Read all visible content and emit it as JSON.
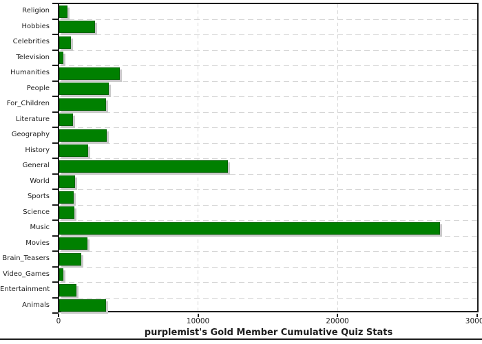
{
  "chart_data": {
    "type": "bar",
    "orientation": "horizontal",
    "title": "purplemist's Gold Member Cumulative Quiz Stats",
    "title_position": "bottom",
    "categories": [
      "Religion",
      "Hobbies",
      "Celebrities",
      "Television",
      "Humanities",
      "People",
      "For_Children",
      "Literature",
      "Geography",
      "History",
      "General",
      "World",
      "Sports",
      "Science",
      "Music",
      "Movies",
      "Brain_Teasers",
      "Video_Games",
      "Entertainment",
      "Animals"
    ],
    "values": [
      600,
      2550,
      850,
      300,
      4350,
      3550,
      3350,
      1000,
      3400,
      2050,
      12100,
      1150,
      1050,
      1100,
      27300,
      2000,
      1600,
      300,
      1250,
      3350
    ],
    "xlabel": "",
    "ylabel": "",
    "xlim": [
      0,
      30000
    ],
    "x_ticks": [
      0,
      10000,
      20000,
      30000
    ],
    "x_tick_labels": [
      "0",
      "10000",
      "20000",
      "30000"
    ],
    "grid": "dashed-light-gray",
    "gridlines_vertical_at": [
      10000,
      20000
    ],
    "bar_color": "#008000",
    "bar_border_color": "#006300",
    "bar_shadow_color": "#c9c9c9",
    "axis_color": "#1c1c1c",
    "background_color": "#ffffff"
  }
}
